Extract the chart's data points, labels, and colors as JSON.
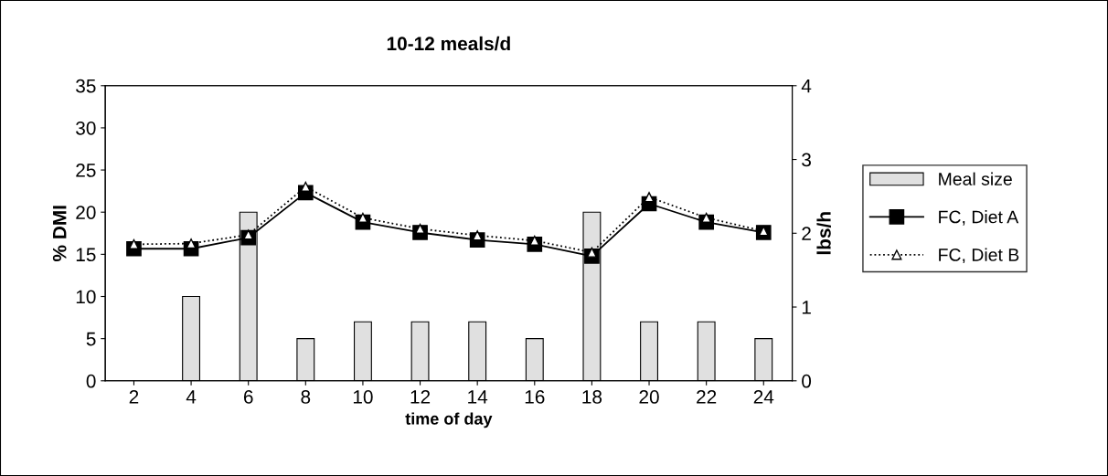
{
  "chart_data": {
    "type": "bar",
    "title": "10-12 meals/d",
    "xlabel": "time of day",
    "ylabel": "% DMI",
    "y2label": "lbs/h",
    "categories": [
      "2",
      "4",
      "6",
      "8",
      "10",
      "12",
      "14",
      "16",
      "18",
      "20",
      "22",
      "24"
    ],
    "series": [
      {
        "name": "Meal size",
        "color": "#e0e0e0",
        "values": [
          null,
          10,
          20,
          5,
          7,
          7,
          7,
          5,
          20,
          7,
          7,
          5
        ]
      },
      {
        "name": "FC, Diet A",
        "type": "line",
        "axis": "y2",
        "color": "#000000",
        "marker": "square",
        "line_style": "solid",
        "values": [
          1.79,
          1.79,
          1.94,
          2.55,
          2.15,
          2.01,
          1.91,
          1.85,
          1.69,
          2.4,
          2.15,
          2.01
        ]
      },
      {
        "name": "FC, Diet B",
        "type": "line",
        "axis": "y2",
        "color": "#000000",
        "marker": "triangle",
        "line_style": "dotted",
        "values": [
          1.85,
          1.86,
          1.98,
          2.63,
          2.21,
          2.06,
          1.97,
          1.9,
          1.74,
          2.49,
          2.21,
          2.03
        ]
      }
    ],
    "ylim": [
      0,
      35
    ],
    "yticks": [
      0,
      5,
      10,
      15,
      20,
      25,
      30,
      35
    ],
    "y2lim": [
      0,
      4
    ],
    "y2ticks": [
      0,
      1,
      2,
      3,
      4
    ],
    "grid": false,
    "legend": "right"
  }
}
